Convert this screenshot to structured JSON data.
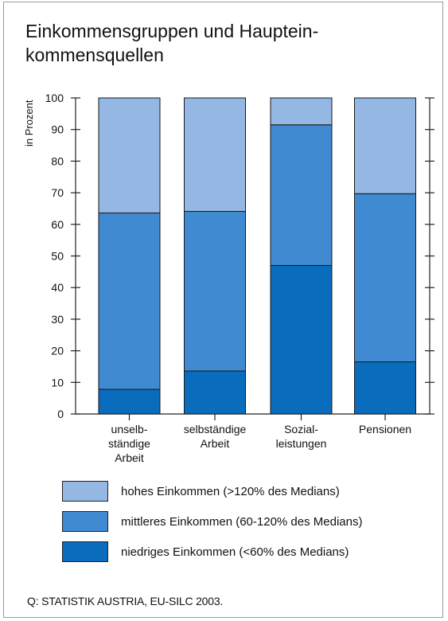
{
  "chart_data": {
    "type": "bar",
    "stacked": true,
    "title": "Einkommensgruppen und Hauptein-\nkommensquellen",
    "ylabel": "in Prozent",
    "ylim": [
      0,
      100
    ],
    "yticks": [
      0,
      10,
      20,
      30,
      40,
      50,
      60,
      70,
      80,
      90,
      100
    ],
    "categories": [
      [
        "unselb-",
        "ständige",
        "Arbeit"
      ],
      [
        "selbständige",
        "Arbeit"
      ],
      [
        "Sozial-",
        "leistungen"
      ],
      [
        "Pensionen"
      ]
    ],
    "series": [
      {
        "name": "niedriges Einkommen (<60% des Medians)",
        "color": "#0a6cbd",
        "values": [
          7.8,
          13.6,
          47,
          16.5
        ]
      },
      {
        "name": "mittleres Einkommen (60-120% des Medians)",
        "color": "#3f8ad1",
        "values": [
          55.8,
          50.5,
          44.5,
          53.2
        ]
      },
      {
        "name": "hohes Einkommen (>120% des Medians)",
        "color": "#94b7e3",
        "values": [
          36.4,
          35.9,
          8.5,
          30.3
        ]
      }
    ],
    "legend_order": [
      2,
      1,
      0
    ],
    "legend_position": "bottom",
    "grid": false
  },
  "source": "Q: STATISTIK AUSTRIA, EU-SILC 2003."
}
